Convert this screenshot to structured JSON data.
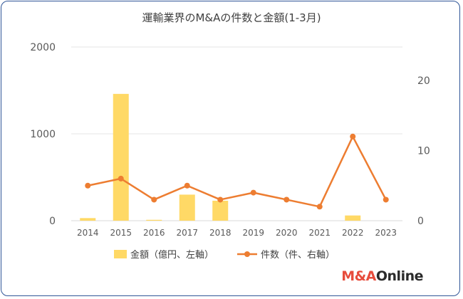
{
  "chart_data": {
    "type": "bar+line",
    "title": "運輸業界のM&Aの件数と金額(1-3月)",
    "categories": [
      "2014",
      "2015",
      "2016",
      "2017",
      "2018",
      "2019",
      "2020",
      "2021",
      "2022",
      "2023"
    ],
    "series": [
      {
        "name": "金額（億円、左軸）",
        "type": "bar",
        "axis": "left",
        "color": "#ffd966",
        "values": [
          30,
          1460,
          10,
          300,
          230,
          0,
          0,
          0,
          60,
          0
        ]
      },
      {
        "name": "件数（件、右軸）",
        "type": "line",
        "axis": "right",
        "color": "#ed7d31",
        "values": [
          5,
          6,
          3,
          5,
          3,
          4,
          3,
          2,
          12,
          3
        ]
      }
    ],
    "y_left": {
      "ticks": [
        "0",
        "1000",
        "2000"
      ],
      "ylim": [
        0,
        2000
      ]
    },
    "y_right": {
      "ticks": [
        "0",
        "10",
        "20"
      ],
      "ylim": [
        0,
        20
      ]
    },
    "grid": true,
    "legend": "bottom"
  },
  "branding": {
    "logo_part1": "M&A",
    "logo_part2": "Online"
  }
}
